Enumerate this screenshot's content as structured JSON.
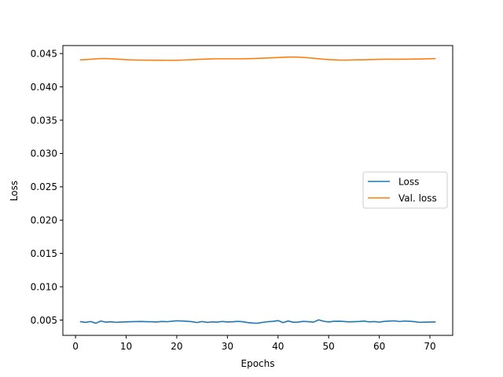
{
  "chart_data": {
    "type": "line",
    "title": "",
    "xlabel": "Epochs",
    "ylabel": "Loss",
    "xlim": [
      -2.5,
      74.5
    ],
    "ylim": [
      0.0027,
      0.0462
    ],
    "xticks": [
      0,
      10,
      20,
      30,
      40,
      50,
      60,
      70
    ],
    "xtick_labels": [
      "0",
      "10",
      "20",
      "30",
      "40",
      "50",
      "60",
      "70"
    ],
    "yticks": [
      0.005,
      0.01,
      0.015,
      0.02,
      0.025,
      0.03,
      0.035,
      0.04,
      0.045
    ],
    "ytick_labels": [
      "0.005",
      "0.010",
      "0.015",
      "0.020",
      "0.025",
      "0.030",
      "0.035",
      "0.040",
      "0.045"
    ],
    "grid": false,
    "legend_position": "center-right",
    "x": [
      1,
      2,
      3,
      4,
      5,
      6,
      7,
      8,
      9,
      10,
      11,
      12,
      13,
      14,
      15,
      16,
      17,
      18,
      19,
      20,
      21,
      22,
      23,
      24,
      25,
      26,
      27,
      28,
      29,
      30,
      31,
      32,
      33,
      34,
      35,
      36,
      37,
      38,
      39,
      40,
      41,
      42,
      43,
      44,
      45,
      46,
      47,
      48,
      49,
      50,
      51,
      52,
      53,
      54,
      55,
      56,
      57,
      58,
      59,
      60,
      61,
      62,
      63,
      64,
      65,
      66,
      67,
      68,
      69,
      70,
      71
    ],
    "series": [
      {
        "name": "Loss",
        "color": "#1f77b4",
        "values": [
          0.00476,
          0.00465,
          0.00478,
          0.00452,
          0.00485,
          0.00468,
          0.00474,
          0.00466,
          0.0047,
          0.00473,
          0.00475,
          0.00477,
          0.00478,
          0.00476,
          0.00474,
          0.00471,
          0.00479,
          0.00475,
          0.00482,
          0.00489,
          0.00486,
          0.00481,
          0.00476,
          0.00463,
          0.00478,
          0.00465,
          0.00472,
          0.00468,
          0.00479,
          0.00471,
          0.00474,
          0.0048,
          0.00476,
          0.00462,
          0.00455,
          0.00452,
          0.00466,
          0.00475,
          0.0048,
          0.00492,
          0.00461,
          0.00486,
          0.00467,
          0.0047,
          0.0048,
          0.00476,
          0.00468,
          0.00503,
          0.00482,
          0.00471,
          0.00481,
          0.00483,
          0.00478,
          0.00472,
          0.00476,
          0.00479,
          0.00484,
          0.00472,
          0.00477,
          0.00469,
          0.0048,
          0.00484,
          0.00488,
          0.00478,
          0.00485,
          0.00482,
          0.00476,
          0.00466,
          0.00468,
          0.0047,
          0.00471
        ]
      },
      {
        "name": "Val. loss",
        "color": "#ff7f0e",
        "values": [
          0.04405,
          0.0441,
          0.04415,
          0.0442,
          0.04425,
          0.04425,
          0.04422,
          0.04418,
          0.04413,
          0.04408,
          0.04405,
          0.04403,
          0.04402,
          0.04401,
          0.04401,
          0.044,
          0.044,
          0.04399,
          0.04399,
          0.044,
          0.04402,
          0.04405,
          0.04408,
          0.04412,
          0.04415,
          0.04418,
          0.0442,
          0.04421,
          0.04421,
          0.04421,
          0.04421,
          0.04421,
          0.04422,
          0.04423,
          0.04425,
          0.04428,
          0.04431,
          0.04434,
          0.04437,
          0.0444,
          0.04444,
          0.04447,
          0.04448,
          0.04446,
          0.04441,
          0.04436,
          0.04429,
          0.04422,
          0.04415,
          0.0441,
          0.04406,
          0.04403,
          0.04402,
          0.04403,
          0.04405,
          0.04406,
          0.04407,
          0.04409,
          0.04411,
          0.04413,
          0.04414,
          0.04414,
          0.04415,
          0.04415,
          0.04415,
          0.04416,
          0.04417,
          0.04418,
          0.0442,
          0.04422,
          0.04424
        ]
      }
    ]
  }
}
